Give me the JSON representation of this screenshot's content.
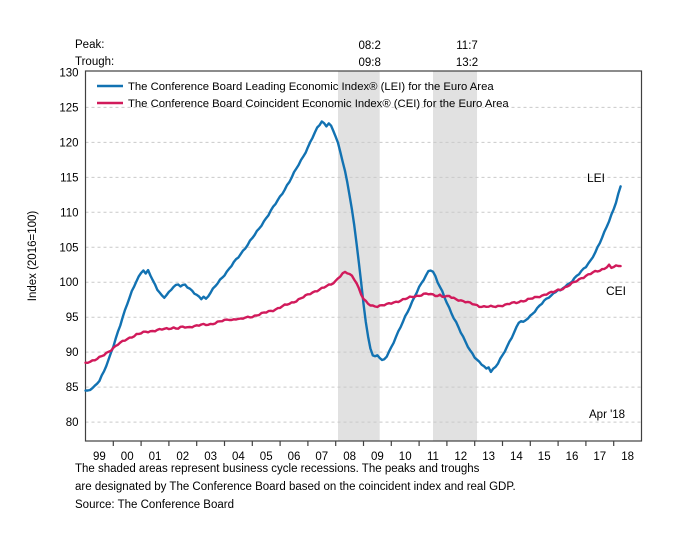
{
  "figure": {
    "peak_row_label": "Peak:",
    "trough_row_label": "Trough:",
    "y_axis_label": "Index (2016=100)",
    "annotations": {
      "lei": "LEI",
      "cei": "CEI",
      "last_point": "Apr '18"
    },
    "footnote_lines": [
      "The shaded areas represent business cycle recessions. The peaks and troughs",
      "are designated by The Conference Board based on the coincident index and real GDP.",
      "Source: The Conference Board"
    ]
  },
  "chart_data": {
    "type": "line",
    "x_unit": "months since Jan 1999",
    "x_range": [
      0,
      240
    ],
    "x_tick_years": [
      "99",
      "00",
      "01",
      "02",
      "03",
      "04",
      "05",
      "06",
      "07",
      "08",
      "09",
      "10",
      "11",
      "12",
      "13",
      "14",
      "15",
      "16",
      "17",
      "18"
    ],
    "ylabel": "Index (2016=100)",
    "ylim": [
      77.3,
      130.2
    ],
    "y_ticks": [
      80,
      85,
      90,
      95,
      100,
      105,
      110,
      115,
      120,
      125,
      130
    ],
    "grid": "horizontal-dashed",
    "legend_position": "top-left-inside",
    "shading_color": "#e1e1e1",
    "grid_color": "#c9c9c9",
    "frame_color": "#404040",
    "recessions": [
      {
        "peak": "08:2",
        "trough": "09:8",
        "start_month": 109,
        "end_month": 127
      },
      {
        "peak": "11:7",
        "trough": "13:2",
        "start_month": 150,
        "end_month": 169
      }
    ],
    "series": [
      {
        "name": "LEI",
        "label": "The Conference Board Leading Economic Index® (LEI) for the Euro Area",
        "color": "#1272b2",
        "end_value": 113.7,
        "points": [
          [
            0,
            84.5
          ],
          [
            1,
            84.4
          ],
          [
            2,
            84.6
          ],
          [
            4,
            85.1
          ],
          [
            6,
            86.0
          ],
          [
            8,
            87.3
          ],
          [
            10,
            88.9
          ],
          [
            12,
            90.8
          ],
          [
            14,
            92.9
          ],
          [
            16,
            95.0
          ],
          [
            18,
            96.9
          ],
          [
            20,
            98.6
          ],
          [
            22,
            100.2
          ],
          [
            24,
            101.4
          ],
          [
            25,
            101.8
          ],
          [
            26,
            101.2
          ],
          [
            27,
            101.7
          ],
          [
            28,
            101.0
          ],
          [
            29,
            100.2
          ],
          [
            31,
            99.0
          ],
          [
            33,
            98.1
          ],
          [
            34,
            97.9
          ],
          [
            36,
            98.5
          ],
          [
            38,
            99.3
          ],
          [
            40,
            99.7
          ],
          [
            41,
            99.5
          ],
          [
            43,
            99.7
          ],
          [
            45,
            99.0
          ],
          [
            47,
            98.4
          ],
          [
            49,
            97.9
          ],
          [
            50,
            97.7
          ],
          [
            51,
            98.0
          ],
          [
            52,
            97.6
          ],
          [
            54,
            98.5
          ],
          [
            56,
            99.4
          ],
          [
            58,
            100.3
          ],
          [
            60,
            101.1
          ],
          [
            62,
            101.9
          ],
          [
            64,
            102.8
          ],
          [
            66,
            103.6
          ],
          [
            68,
            104.5
          ],
          [
            70,
            105.4
          ],
          [
            72,
            106.3
          ],
          [
            74,
            107.2
          ],
          [
            76,
            108.2
          ],
          [
            78,
            109.2
          ],
          [
            80,
            110.2
          ],
          [
            82,
            111.2
          ],
          [
            84,
            112.2
          ],
          [
            86,
            113.3
          ],
          [
            88,
            114.4
          ],
          [
            90,
            115.6
          ],
          [
            92,
            116.8
          ],
          [
            94,
            118.0
          ],
          [
            96,
            119.3
          ],
          [
            98,
            120.7
          ],
          [
            100,
            122.0
          ],
          [
            101,
            122.5
          ],
          [
            102,
            123.0
          ],
          [
            103,
            122.7
          ],
          [
            104,
            122.4
          ],
          [
            105,
            122.8
          ],
          [
            106,
            122.3
          ],
          [
            107,
            121.6
          ],
          [
            108,
            120.8
          ],
          [
            109,
            119.8
          ],
          [
            110,
            118.6
          ],
          [
            111,
            117.3
          ],
          [
            112,
            115.9
          ],
          [
            113,
            114.3
          ],
          [
            114,
            112.5
          ],
          [
            115,
            110.4
          ],
          [
            116,
            108.1
          ],
          [
            117,
            105.5
          ],
          [
            118,
            102.7
          ],
          [
            119,
            99.8
          ],
          [
            120,
            97.0
          ],
          [
            121,
            94.4
          ],
          [
            122,
            92.2
          ],
          [
            123,
            90.6
          ],
          [
            124,
            89.6
          ],
          [
            125,
            89.3
          ],
          [
            126,
            89.5
          ],
          [
            127,
            89.2
          ],
          [
            128,
            88.8
          ],
          [
            129,
            89.0
          ],
          [
            130,
            89.5
          ],
          [
            132,
            90.7
          ],
          [
            134,
            92.1
          ],
          [
            136,
            93.6
          ],
          [
            138,
            95.1
          ],
          [
            140,
            96.5
          ],
          [
            142,
            97.9
          ],
          [
            144,
            99.2
          ],
          [
            146,
            100.4
          ],
          [
            147,
            101.0
          ],
          [
            148,
            101.6
          ],
          [
            149,
            101.8
          ],
          [
            150,
            101.5
          ],
          [
            151,
            100.8
          ],
          [
            152,
            100.0
          ],
          [
            154,
            98.6
          ],
          [
            156,
            97.1
          ],
          [
            158,
            95.6
          ],
          [
            160,
            94.2
          ],
          [
            162,
            92.8
          ],
          [
            164,
            91.5
          ],
          [
            166,
            90.3
          ],
          [
            168,
            89.3
          ],
          [
            170,
            88.5
          ],
          [
            171,
            88.2
          ],
          [
            172,
            88.0
          ],
          [
            173,
            87.6
          ],
          [
            174,
            87.9
          ],
          [
            175,
            87.3
          ],
          [
            176,
            87.6
          ],
          [
            177,
            87.9
          ],
          [
            178,
            88.4
          ],
          [
            180,
            89.5
          ],
          [
            182,
            90.8
          ],
          [
            184,
            92.2
          ],
          [
            186,
            93.5
          ],
          [
            187,
            94.2
          ],
          [
            188,
            94.4
          ],
          [
            189,
            94.2
          ],
          [
            190,
            94.6
          ],
          [
            192,
            95.2
          ],
          [
            194,
            95.9
          ],
          [
            196,
            96.6
          ],
          [
            198,
            97.3
          ],
          [
            200,
            97.9
          ],
          [
            202,
            98.4
          ],
          [
            203,
            98.7
          ],
          [
            204,
            98.9
          ],
          [
            205,
            98.7
          ],
          [
            206,
            99.1
          ],
          [
            208,
            99.6
          ],
          [
            210,
            100.2
          ],
          [
            212,
            100.9
          ],
          [
            214,
            101.5
          ],
          [
            216,
            102.2
          ],
          [
            218,
            103.1
          ],
          [
            220,
            104.3
          ],
          [
            222,
            105.6
          ],
          [
            224,
            107.1
          ],
          [
            226,
            108.8
          ],
          [
            228,
            110.5
          ],
          [
            229,
            111.5
          ],
          [
            230,
            112.6
          ],
          [
            231,
            113.7
          ]
        ]
      },
      {
        "name": "CEI",
        "label": "The Conference Board Coincident Economic Index® (CEI) for the Euro Area",
        "color": "#d11a5b",
        "end_value": 102.3,
        "points": [
          [
            0,
            88.5
          ],
          [
            2,
            88.7
          ],
          [
            4,
            88.9
          ],
          [
            6,
            89.2
          ],
          [
            8,
            89.6
          ],
          [
            10,
            90.1
          ],
          [
            12,
            90.6
          ],
          [
            14,
            91.1
          ],
          [
            16,
            91.5
          ],
          [
            18,
            91.9
          ],
          [
            20,
            92.2
          ],
          [
            22,
            92.5
          ],
          [
            24,
            92.7
          ],
          [
            26,
            92.9
          ],
          [
            28,
            93.0
          ],
          [
            30,
            93.1
          ],
          [
            32,
            93.2
          ],
          [
            34,
            93.3
          ],
          [
            36,
            93.4
          ],
          [
            38,
            93.5
          ],
          [
            40,
            93.4
          ],
          [
            42,
            93.6
          ],
          [
            44,
            93.5
          ],
          [
            46,
            93.7
          ],
          [
            48,
            93.8
          ],
          [
            50,
            93.9
          ],
          [
            52,
            93.9
          ],
          [
            54,
            94.0
          ],
          [
            56,
            94.2
          ],
          [
            58,
            94.4
          ],
          [
            60,
            94.5
          ],
          [
            62,
            94.7
          ],
          [
            63,
            94.6
          ],
          [
            65,
            94.8
          ],
          [
            67,
            94.7
          ],
          [
            69,
            94.9
          ],
          [
            72,
            95.1
          ],
          [
            75,
            95.4
          ],
          [
            78,
            95.7
          ],
          [
            81,
            96.0
          ],
          [
            84,
            96.4
          ],
          [
            87,
            96.8
          ],
          [
            90,
            97.2
          ],
          [
            93,
            97.7
          ],
          [
            96,
            98.2
          ],
          [
            99,
            98.7
          ],
          [
            102,
            99.1
          ],
          [
            104,
            99.4
          ],
          [
            106,
            99.7
          ],
          [
            108,
            100.2
          ],
          [
            109,
            100.6
          ],
          [
            110,
            100.9
          ],
          [
            111,
            101.2
          ],
          [
            112,
            101.4
          ],
          [
            113,
            101.3
          ],
          [
            114,
            101.1
          ],
          [
            115,
            100.9
          ],
          [
            116,
            100.5
          ],
          [
            117,
            99.9
          ],
          [
            118,
            99.1
          ],
          [
            119,
            98.3
          ],
          [
            120,
            97.6
          ],
          [
            121,
            97.2
          ],
          [
            122,
            96.9
          ],
          [
            123,
            96.7
          ],
          [
            124,
            96.6
          ],
          [
            126,
            96.6
          ],
          [
            128,
            96.7
          ],
          [
            130,
            96.8
          ],
          [
            132,
            97.0
          ],
          [
            134,
            97.2
          ],
          [
            136,
            97.4
          ],
          [
            138,
            97.6
          ],
          [
            140,
            97.8
          ],
          [
            142,
            98.0
          ],
          [
            144,
            98.1
          ],
          [
            146,
            98.3
          ],
          [
            148,
            98.3
          ],
          [
            150,
            98.2
          ],
          [
            152,
            98.1
          ],
          [
            153,
            98.2
          ],
          [
            154,
            98.0
          ],
          [
            156,
            97.9
          ],
          [
            157,
            98.0
          ],
          [
            158,
            97.8
          ],
          [
            160,
            97.6
          ],
          [
            162,
            97.4
          ],
          [
            164,
            97.2
          ],
          [
            166,
            97.0
          ],
          [
            168,
            96.8
          ],
          [
            170,
            96.6
          ],
          [
            172,
            96.5
          ],
          [
            174,
            96.5
          ],
          [
            176,
            96.5
          ],
          [
            178,
            96.6
          ],
          [
            180,
            96.7
          ],
          [
            182,
            96.8
          ],
          [
            184,
            97.0
          ],
          [
            186,
            97.1
          ],
          [
            188,
            97.3
          ],
          [
            190,
            97.4
          ],
          [
            192,
            97.6
          ],
          [
            194,
            97.8
          ],
          [
            196,
            98.0
          ],
          [
            198,
            98.2
          ],
          [
            200,
            98.4
          ],
          [
            202,
            98.6
          ],
          [
            204,
            98.9
          ],
          [
            206,
            99.1
          ],
          [
            208,
            99.4
          ],
          [
            210,
            99.8
          ],
          [
            212,
            100.2
          ],
          [
            214,
            100.6
          ],
          [
            216,
            100.9
          ],
          [
            218,
            101.2
          ],
          [
            220,
            101.5
          ],
          [
            222,
            101.7
          ],
          [
            224,
            102.0
          ],
          [
            225,
            102.2
          ],
          [
            226,
            102.4
          ],
          [
            227,
            102.0
          ],
          [
            228,
            102.2
          ],
          [
            229,
            102.3
          ],
          [
            230,
            102.3
          ],
          [
            231,
            102.3
          ]
        ]
      }
    ]
  }
}
